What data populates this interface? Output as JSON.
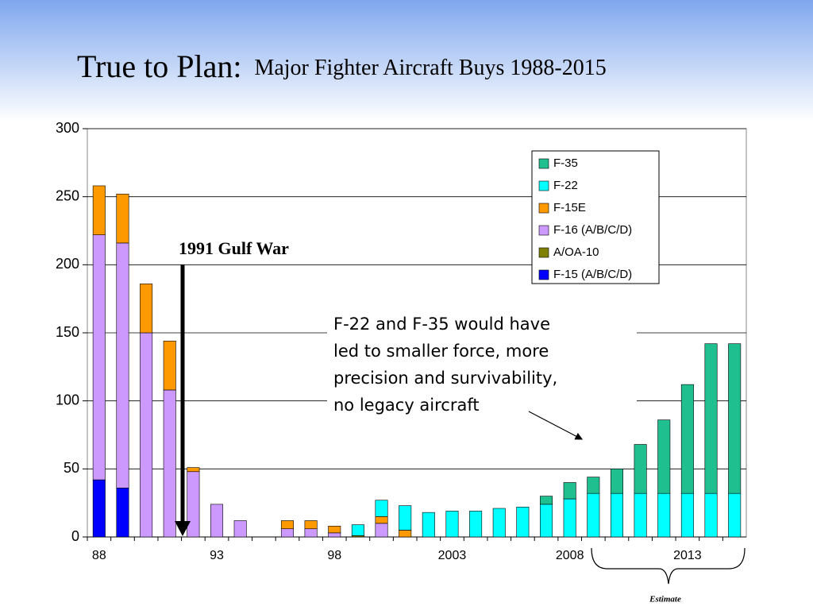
{
  "chart_data": {
    "type": "stacked_bar",
    "title": "True to Plan:",
    "subtitle": "Major Fighter Aircraft Buys 1988-2015",
    "categories": [
      "88",
      null,
      null,
      null,
      null,
      "93",
      null,
      null,
      null,
      null,
      "98",
      null,
      null,
      null,
      null,
      "2003",
      null,
      null,
      null,
      null,
      "2008",
      null,
      null,
      null,
      null,
      "2013",
      null,
      null
    ],
    "series": [
      {
        "name": "F-15 (A/B/C/D)",
        "color": "#0000ff",
        "values": [
          42,
          36,
          0,
          0,
          0,
          0,
          0,
          0,
          0,
          0,
          0,
          0,
          0,
          0,
          0,
          0,
          0,
          0,
          0,
          0,
          0,
          0,
          0,
          0,
          0,
          0,
          0,
          0
        ]
      },
      {
        "name": "A/OA-10",
        "color": "#808000",
        "values": [
          0,
          0,
          0,
          0,
          0,
          0,
          0,
          0,
          0,
          0,
          0,
          1,
          0,
          0,
          0,
          0,
          0,
          0,
          0,
          0,
          0,
          0,
          0,
          0,
          0,
          0,
          0,
          0
        ]
      },
      {
        "name": "F-16 (A/B/C/D)",
        "color": "#cc99ff",
        "values": [
          180,
          180,
          150,
          108,
          48,
          24,
          12,
          0,
          6,
          6,
          3,
          0,
          10,
          0,
          0,
          0,
          0,
          0,
          0,
          0,
          0,
          0,
          0,
          0,
          0,
          0,
          0,
          0
        ]
      },
      {
        "name": "F-15E",
        "color": "#ff9900",
        "values": [
          36,
          36,
          36,
          36,
          3,
          0,
          0,
          0,
          6,
          6,
          5,
          0,
          5,
          5,
          0,
          0,
          0,
          0,
          0,
          0,
          0,
          0,
          0,
          0,
          0,
          0,
          0,
          0
        ]
      },
      {
        "name": "F-22",
        "color": "#00ffff",
        "values": [
          0,
          0,
          0,
          0,
          0,
          0,
          0,
          0,
          0,
          0,
          0,
          8,
          12,
          18,
          18,
          19,
          19,
          21,
          22,
          24,
          28,
          32,
          32,
          32,
          32,
          32,
          32,
          32
        ]
      },
      {
        "name": "F-35",
        "color": "#1fbf8f",
        "values": [
          0,
          0,
          0,
          0,
          0,
          0,
          0,
          0,
          0,
          0,
          0,
          0,
          0,
          0,
          0,
          0,
          0,
          0,
          0,
          6,
          12,
          12,
          18,
          36,
          54,
          80,
          110,
          110
        ]
      }
    ],
    "ylim": [
      0,
      300
    ],
    "yticks": [
      0,
      50,
      100,
      150,
      200,
      250,
      300
    ],
    "grid": true,
    "legend": "upper right",
    "annotations": {
      "gulf_war": "1991 Gulf War",
      "note": [
        "F-22 and F-35 would have",
        "led to smaller force, more",
        "precision and survivability,",
        "no legacy aircraft"
      ],
      "estimate": "Estimate"
    }
  }
}
